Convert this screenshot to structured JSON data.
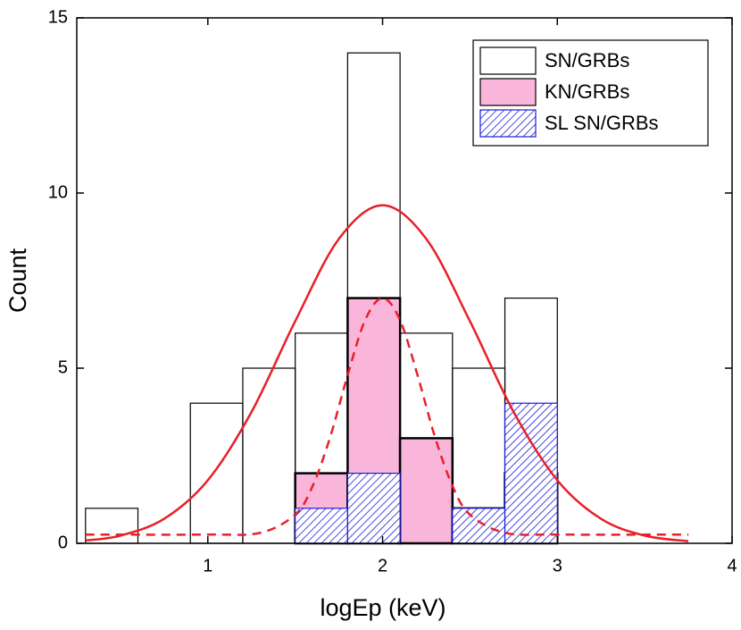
{
  "chart_data": {
    "type": "histogram",
    "xlabel": "logEp (keV)",
    "ylabel": "Count",
    "bins": [
      0.3,
      0.6,
      0.9,
      1.2,
      1.5,
      1.8,
      2.1,
      2.4,
      2.7,
      3.0
    ],
    "series": [
      {
        "name": "SN/GRBs",
        "color": "#000000",
        "fill": "none",
        "values": [
          1,
          0,
          4,
          5,
          6,
          14,
          6,
          5,
          7
        ]
      },
      {
        "name": "KN/GRBs",
        "color": "#000000",
        "fill": "#f9b6da",
        "values": [
          0,
          0,
          0,
          0,
          2,
          7,
          3,
          1,
          2
        ]
      },
      {
        "name": "SL SN/GRBs",
        "color": "#1a1adc",
        "fill": "hatch",
        "values": [
          0,
          0,
          0,
          0,
          1,
          2,
          0,
          1,
          4
        ]
      }
    ],
    "curves": [
      {
        "color": "#e8202a",
        "dashed": false,
        "x": [
          0.3,
          0.5,
          0.75,
          1,
          1.25,
          1.5,
          1.75,
          2,
          2.25,
          2.5,
          2.75,
          3,
          3.25,
          3.5,
          3.75
        ],
        "y": [
          0.08,
          0.22,
          0.7,
          1.8,
          3.75,
          6.34,
          8.69,
          9.65,
          8.69,
          6.34,
          3.75,
          1.8,
          0.7,
          0.22,
          0.06
        ]
      },
      {
        "color": "#e8202a",
        "dashed": true,
        "x": [
          0.3,
          1.0,
          1.3,
          1.5,
          1.6,
          1.7,
          1.8,
          1.9,
          2.0,
          2.1,
          2.2,
          2.3,
          2.4,
          2.5,
          2.7,
          3.0,
          3.75
        ],
        "y": [
          0.25,
          0.25,
          0.3,
          0.82,
          1.64,
          3.03,
          4.8,
          6.37,
          7.0,
          6.37,
          4.8,
          3.03,
          1.64,
          0.82,
          0.3,
          0.25,
          0.25
        ]
      }
    ],
    "xlim": [
      0.25,
      4
    ],
    "xticks": [
      1,
      2,
      3,
      4
    ],
    "ylim": [
      0,
      15
    ],
    "yticks": [
      0,
      5,
      10,
      15
    ],
    "legend": "upper right"
  }
}
